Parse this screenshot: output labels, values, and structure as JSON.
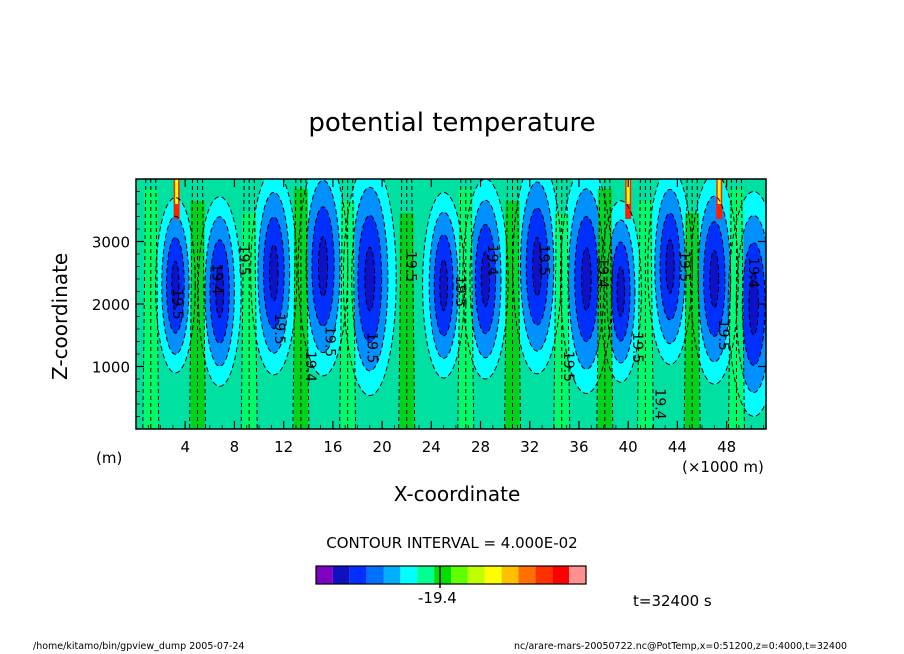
{
  "chart_data": {
    "type": "heatmap",
    "title": "potential temperature",
    "xlabel": "X-coordinate",
    "ylabel": "Z-coordinate",
    "x_unit_label": "(×1000 m)",
    "y_unit_label": "(m)",
    "xlim": [
      0,
      51.2
    ],
    "ylim": [
      0,
      4000
    ],
    "x_ticks": [
      4,
      8,
      12,
      16,
      20,
      24,
      28,
      32,
      36,
      40,
      44,
      48
    ],
    "y_ticks": [
      1000,
      2000,
      3000
    ],
    "contour_interval_text": "CONTOUR INTERVAL = 4.000E-02",
    "colorbar_label": "-19.4",
    "contour_labels": [
      "19.5",
      "19.4",
      "19.5",
      "19.5",
      "19.4",
      "19.5",
      "19.5",
      "19.5",
      "19.5",
      "19.4",
      "19.5",
      "19.5",
      "19.4",
      "19.5",
      "19.4",
      "19.5",
      "19.4",
      "19.5"
    ],
    "colorbar_colors": [
      "#8000c0",
      "#1010c0",
      "#0030ff",
      "#0070ff",
      "#00b0ff",
      "#00ffff",
      "#00ff90",
      "#00e000",
      "#60ff00",
      "#c0ff00",
      "#ffff00",
      "#ffc000",
      "#ff7000",
      "#ff3000",
      "#ff0000",
      "#ff9090"
    ],
    "field_colors": {
      "deep": "#1010c0",
      "blue": "#0030ff",
      "mid": "#0090ff",
      "cyan": "#00ffff",
      "teal": "#00e0a0",
      "green": "#00ff60",
      "lime": "#00d000",
      "red": "#ff2000"
    }
  },
  "annotations": {
    "time": "t=32400 s",
    "footer_left": "/home/kitamo/bin/gpview_dump  2005-07-24",
    "footer_right": "nc/arare-mars-20050722.nc@PotTemp,x=0:51200,z=0:4000,t=32400"
  }
}
